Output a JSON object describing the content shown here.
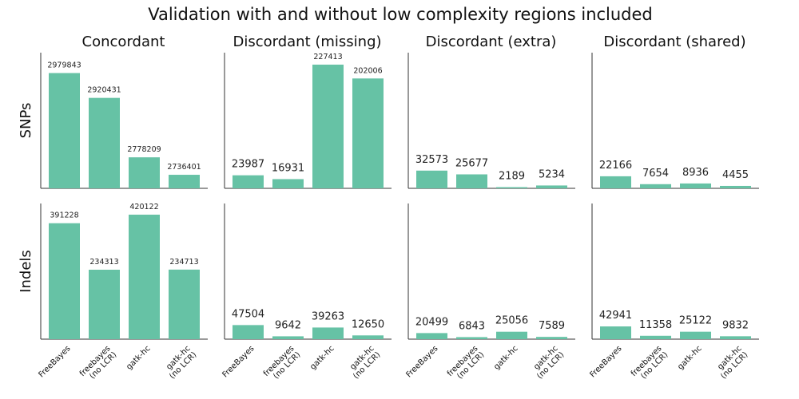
{
  "suptitle": "Validation with and without low complexity regions included",
  "col_titles": [
    "Concordant",
    "Discordant (missing)",
    "Discordant (extra)",
    "Discordant (shared)"
  ],
  "row_labels": [
    "SNPs",
    "Indels"
  ],
  "categories": [
    [
      "FreeBayes"
    ],
    [
      "freebayes",
      "(no LCR)"
    ],
    [
      "gatk-hc"
    ],
    [
      "gatk-hc",
      "(no LCR)"
    ]
  ],
  "colors": {
    "bar": "#66c2a5",
    "axis": "#333333"
  },
  "chart_data": [
    {
      "type": "bar",
      "row": "SNPs",
      "title": "Concordant",
      "categories": [
        "FreeBayes",
        "freebayes (no LCR)",
        "gatk-hc",
        "gatk-hc (no LCR)"
      ],
      "values": [
        2979843,
        2920431,
        2778209,
        2736401
      ],
      "ylim": [
        2704000,
        3000000
      ]
    },
    {
      "type": "bar",
      "row": "SNPs",
      "title": "Discordant (missing)",
      "categories": [
        "FreeBayes",
        "freebayes (no LCR)",
        "gatk-hc",
        "gatk-hc (no LCR)"
      ],
      "values": [
        23987,
        16931,
        227413,
        202006
      ],
      "ylim": [
        0,
        227413
      ]
    },
    {
      "type": "bar",
      "row": "SNPs",
      "title": "Discordant (extra)",
      "categories": [
        "FreeBayes",
        "freebayes (no LCR)",
        "gatk-hc",
        "gatk-hc (no LCR)"
      ],
      "values": [
        32573,
        25677,
        2189,
        5234
      ],
      "ylim": [
        0,
        227413
      ]
    },
    {
      "type": "bar",
      "row": "SNPs",
      "title": "Discordant (shared)",
      "categories": [
        "FreeBayes",
        "freebayes (no LCR)",
        "gatk-hc",
        "gatk-hc (no LCR)"
      ],
      "values": [
        22166,
        7654,
        8936,
        4455
      ],
      "ylim": [
        0,
        227413
      ]
    },
    {
      "type": "bar",
      "row": "Indels",
      "title": "Concordant",
      "categories": [
        "FreeBayes",
        "freebayes (no LCR)",
        "gatk-hc",
        "gatk-hc (no LCR)"
      ],
      "values": [
        391228,
        234313,
        420122,
        234713
      ],
      "ylim": [
        0,
        420122
      ]
    },
    {
      "type": "bar",
      "row": "Indels",
      "title": "Discordant (missing)",
      "categories": [
        "FreeBayes",
        "freebayes (no LCR)",
        "gatk-hc",
        "gatk-hc (no LCR)"
      ],
      "values": [
        47504,
        9642,
        39263,
        12650
      ],
      "ylim": [
        0,
        420122
      ]
    },
    {
      "type": "bar",
      "row": "Indels",
      "title": "Discordant (extra)",
      "categories": [
        "FreeBayes",
        "freebayes (no LCR)",
        "gatk-hc",
        "gatk-hc (no LCR)"
      ],
      "values": [
        20499,
        6843,
        25056,
        7589
      ],
      "ylim": [
        0,
        420122
      ]
    },
    {
      "type": "bar",
      "row": "Indels",
      "title": "Discordant (shared)",
      "categories": [
        "FreeBayes",
        "freebayes (no LCR)",
        "gatk-hc",
        "gatk-hc (no LCR)"
      ],
      "values": [
        42941,
        11358,
        25122,
        9832
      ],
      "ylim": [
        0,
        420122
      ]
    }
  ]
}
